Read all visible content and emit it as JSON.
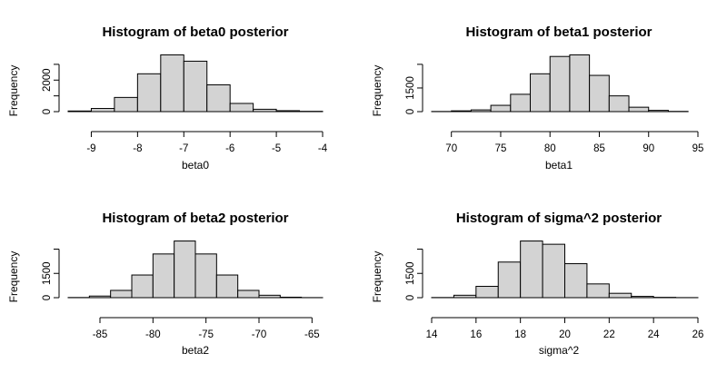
{
  "chart_data": [
    {
      "type": "bar",
      "title": "Histogram of beta0 posterior",
      "xlabel": "beta0",
      "ylabel": "Frequency",
      "xlim": [
        -9.5,
        -4
      ],
      "ylim": [
        0,
        3000
      ],
      "xticks": [
        -9,
        -8,
        -7,
        -6,
        -5,
        -4
      ],
      "yticks": [
        0,
        1000,
        2000,
        3000
      ],
      "ytick_labels": [
        "0",
        "",
        "2000",
        ""
      ],
      "bin_edges": [
        -9.5,
        -9,
        -8.5,
        -8,
        -7.5,
        -7,
        -6.5,
        -6,
        -5.5,
        -5,
        -4.5,
        -4
      ],
      "values": [
        40,
        200,
        900,
        2400,
        3600,
        3200,
        1700,
        520,
        150,
        60,
        20
      ]
    },
    {
      "type": "bar",
      "title": "Histogram of beta1 posterior",
      "xlabel": "beta1",
      "ylabel": "Frequency",
      "xlim": [
        68,
        95
      ],
      "ylim": [
        0,
        3000
      ],
      "xticks": [
        70,
        75,
        80,
        85,
        90,
        95
      ],
      "yticks": [
        0,
        1500,
        3000
      ],
      "ytick_labels": [
        "0",
        "1500",
        ""
      ],
      "bin_edges": [
        68,
        70,
        72,
        74,
        76,
        78,
        80,
        82,
        84,
        86,
        88,
        90,
        92,
        94
      ],
      "values": [
        10,
        50,
        110,
        400,
        1100,
        2400,
        3500,
        3600,
        2300,
        1000,
        280,
        80,
        15
      ]
    },
    {
      "type": "bar",
      "title": "Histogram of beta2 posterior",
      "xlabel": "beta2",
      "ylabel": "Frequency",
      "xlim": [
        -88,
        -64
      ],
      "ylim": [
        0,
        3000
      ],
      "xticks": [
        -85,
        -80,
        -75,
        -70,
        -65
      ],
      "yticks": [
        0,
        1500,
        3000
      ],
      "ytick_labels": [
        "0",
        "1500",
        ""
      ],
      "bin_edges": [
        -88,
        -86,
        -84,
        -82,
        -80,
        -78,
        -76,
        -74,
        -72,
        -70,
        -68,
        -66,
        -64
      ],
      "values": [
        10,
        100,
        450,
        1400,
        2700,
        3500,
        2700,
        1400,
        450,
        150,
        30,
        5
      ]
    },
    {
      "type": "bar",
      "title": "Histogram of sigma^2 posterior",
      "xlabel": "sigma^2",
      "ylabel": "Frequency",
      "xlim": [
        14,
        26
      ],
      "ylim": [
        0,
        3000
      ],
      "xticks": [
        14,
        16,
        18,
        20,
        22,
        24,
        26
      ],
      "yticks": [
        0,
        1500,
        3000
      ],
      "ytick_labels": [
        "0",
        "1500",
        ""
      ],
      "bin_edges": [
        14,
        15,
        16,
        17,
        18,
        19,
        20,
        21,
        22,
        23,
        24,
        25,
        26
      ],
      "values": [
        10,
        150,
        700,
        2200,
        3500,
        3300,
        2100,
        850,
        270,
        80,
        20,
        5
      ]
    }
  ]
}
